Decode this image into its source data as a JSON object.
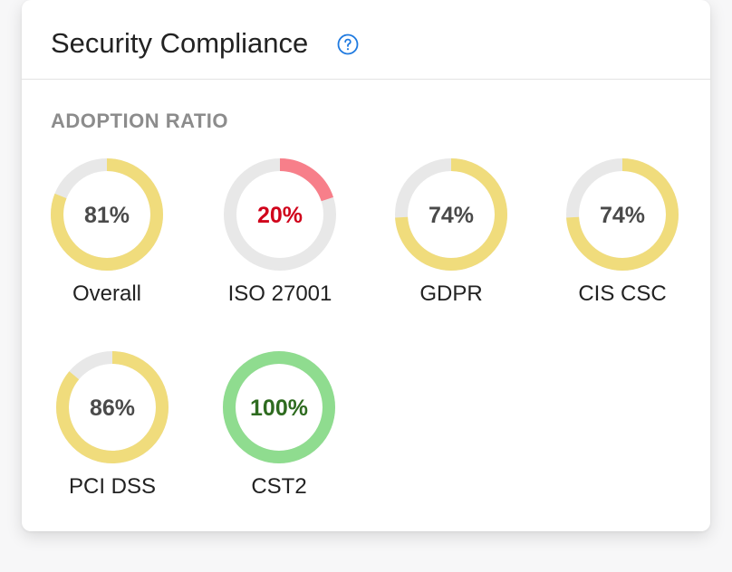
{
  "header": {
    "title": "Security Compliance",
    "help_icon": "question-circle-icon"
  },
  "section": {
    "label": "ADOPTION RATIO"
  },
  "colors": {
    "track": "#e8e8e8",
    "warning": "#f0dc7c",
    "danger": "#f77f8a",
    "success": "#8fdc8f",
    "text_default": "#4a4a4a",
    "text_danger": "#d0021b",
    "text_success": "#2e6b1f",
    "help": "#1f7ae0"
  },
  "gauges": [
    {
      "name": "Overall",
      "value": 81,
      "display": "81%",
      "status": "warning"
    },
    {
      "name": "ISO 27001",
      "value": 20,
      "display": "20%",
      "status": "danger"
    },
    {
      "name": "GDPR",
      "value": 74,
      "display": "74%",
      "status": "warning"
    },
    {
      "name": "CIS CSC",
      "value": 74,
      "display": "74%",
      "status": "warning"
    },
    {
      "name": "PCI DSS",
      "value": 86,
      "display": "86%",
      "status": "warning"
    },
    {
      "name": "CST2",
      "value": 100,
      "display": "100%",
      "status": "success"
    }
  ]
}
